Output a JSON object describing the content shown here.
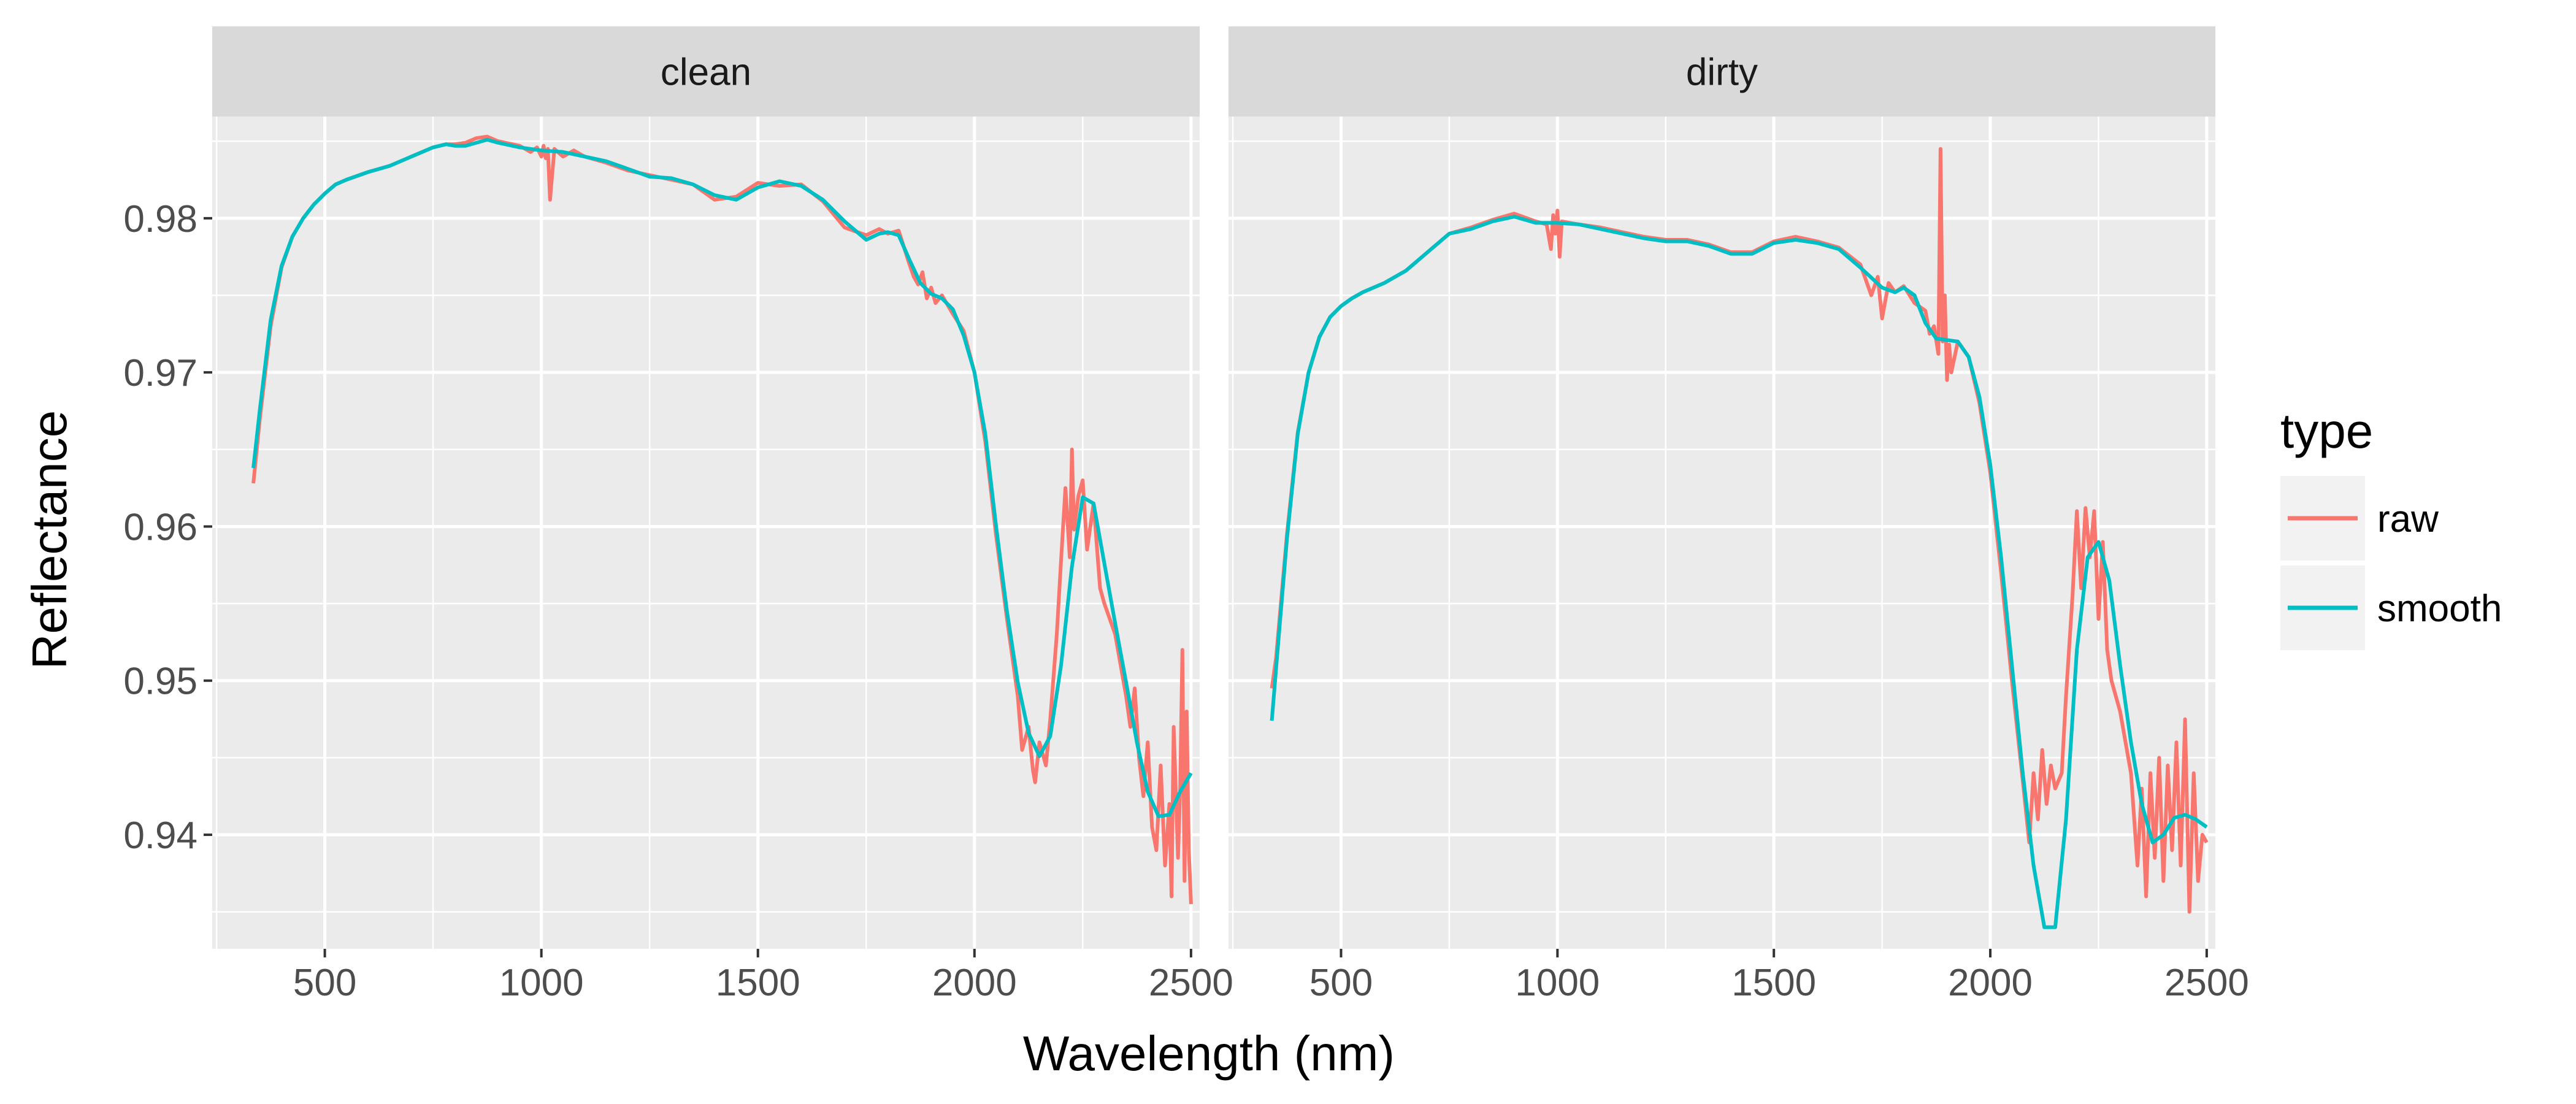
{
  "chart_data": {
    "type": "line",
    "xlabel": "Wavelength (nm)",
    "ylabel": "Reflectance",
    "xlim": [
      240,
      2520
    ],
    "ylim": [
      0.9326,
      0.9866
    ],
    "x_ticks": [
      500,
      1000,
      1500,
      2000,
      2500
    ],
    "x_tick_labels": [
      "500",
      "1000",
      "1500",
      "2000",
      "2500"
    ],
    "y_ticks": [
      0.94,
      0.95,
      0.96,
      0.97,
      0.98
    ],
    "y_tick_labels": [
      "0.94",
      "0.95",
      "0.96",
      "0.97",
      "0.98"
    ],
    "grid": true,
    "legend": {
      "title": "type",
      "position": "right",
      "entries": [
        {
          "label": "raw",
          "color": "#F8766D"
        },
        {
          "label": "smooth",
          "color": "#00BFC4"
        }
      ]
    },
    "colors": {
      "raw": "#F8766D",
      "smooth": "#00BFC4",
      "panel_bg": "#EBEBEB",
      "strip_bg": "#D9D9D9",
      "grid": "#FFFFFF"
    },
    "facets": [
      {
        "label": "clean",
        "series": [
          {
            "name": "smooth",
            "x": [
              335,
              350,
              375,
              400,
              425,
              450,
              475,
              500,
              525,
              550,
              600,
              650,
              700,
              750,
              780,
              800,
              825,
              850,
              875,
              900,
              950,
              1000,
              1050,
              1100,
              1150,
              1200,
              1250,
              1300,
              1350,
              1400,
              1450,
              1500,
              1550,
              1600,
              1650,
              1700,
              1750,
              1780,
              1800,
              1825,
              1850,
              1875,
              1900,
              1925,
              1950,
              1975,
              2000,
              2025,
              2050,
              2075,
              2100,
              2125,
              2150,
              2175,
              2200,
              2225,
              2250,
              2275,
              2300,
              2325,
              2350,
              2375,
              2400,
              2425,
              2450,
              2475,
              2500
            ],
            "y": [
              0.9638,
              0.9676,
              0.9734,
              0.9769,
              0.9788,
              0.98,
              0.9809,
              0.9816,
              0.9822,
              0.9825,
              0.983,
              0.9834,
              0.984,
              0.9846,
              0.9848,
              0.9847,
              0.9847,
              0.9849,
              0.9851,
              0.9849,
              0.9846,
              0.9844,
              0.9843,
              0.984,
              0.9837,
              0.9832,
              0.9827,
              0.9826,
              0.9822,
              0.9815,
              0.9812,
              0.982,
              0.9824,
              0.9821,
              0.9812,
              0.9798,
              0.9786,
              0.979,
              0.9791,
              0.9789,
              0.9773,
              0.9758,
              0.9751,
              0.9748,
              0.9741,
              0.9724,
              0.97,
              0.966,
              0.96,
              0.9545,
              0.9499,
              0.9466,
              0.9451,
              0.9464,
              0.951,
              0.9574,
              0.9619,
              0.9615,
              0.9576,
              0.9537,
              0.9499,
              0.946,
              0.9428,
              0.9412,
              0.9413,
              0.9428,
              0.944
            ]
          },
          {
            "name": "raw",
            "x": [
              335,
              350,
              375,
              400,
              425,
              450,
              475,
              500,
              525,
              550,
              600,
              650,
              700,
              750,
              780,
              800,
              825,
              850,
              875,
              900,
              950,
              975,
              990,
              1000,
              1005,
              1010,
              1015,
              1020,
              1030,
              1050,
              1075,
              1100,
              1150,
              1200,
              1250,
              1300,
              1350,
              1400,
              1450,
              1500,
              1550,
              1600,
              1650,
              1700,
              1750,
              1780,
              1800,
              1825,
              1850,
              1860,
              1870,
              1880,
              1890,
              1900,
              1910,
              1925,
              1950,
              1975,
              2000,
              2025,
              2050,
              2075,
              2090,
              2100,
              2110,
              2125,
              2135,
              2140,
              2150,
              2165,
              2175,
              2190,
              2200,
              2210,
              2220,
              2225,
              2230,
              2240,
              2250,
              2260,
              2275,
              2290,
              2300,
              2325,
              2350,
              2360,
              2370,
              2380,
              2390,
              2400,
              2410,
              2420,
              2430,
              2440,
              2450,
              2455,
              2460,
              2470,
              2475,
              2480,
              2485,
              2490,
              2495,
              2500
            ],
            "y": [
              0.9628,
              0.967,
              0.973,
              0.9768,
              0.9788,
              0.98,
              0.9809,
              0.9816,
              0.9822,
              0.9825,
              0.983,
              0.9834,
              0.984,
              0.9846,
              0.9848,
              0.9848,
              0.9849,
              0.9852,
              0.9853,
              0.985,
              0.9847,
              0.9843,
              0.9846,
              0.984,
              0.9847,
              0.9839,
              0.9845,
              0.9812,
              0.9845,
              0.984,
              0.9844,
              0.984,
              0.9836,
              0.9831,
              0.9828,
              0.9825,
              0.9822,
              0.9812,
              0.9814,
              0.9823,
              0.9821,
              0.9822,
              0.9811,
              0.9794,
              0.9789,
              0.9793,
              0.979,
              0.9792,
              0.977,
              0.9762,
              0.9757,
              0.9765,
              0.9748,
              0.9755,
              0.9745,
              0.975,
              0.9738,
              0.9727,
              0.97,
              0.9655,
              0.9594,
              0.954,
              0.951,
              0.949,
              0.9455,
              0.947,
              0.9442,
              0.9434,
              0.946,
              0.9445,
              0.9475,
              0.953,
              0.9578,
              0.9625,
              0.958,
              0.965,
              0.9598,
              0.962,
              0.963,
              0.9585,
              0.9615,
              0.956,
              0.955,
              0.953,
              0.949,
              0.947,
              0.9495,
              0.945,
              0.9425,
              0.946,
              0.9405,
              0.939,
              0.9445,
              0.938,
              0.942,
              0.936,
              0.947,
              0.9385,
              0.943,
              0.952,
              0.937,
              0.948,
              0.939,
              0.9355
            ]
          }
        ]
      },
      {
        "label": "dirty",
        "series": [
          {
            "name": "smooth",
            "x": [
              340,
              350,
              375,
              400,
              425,
              450,
              475,
              500,
              525,
              550,
              600,
              650,
              700,
              750,
              800,
              850,
              900,
              950,
              1000,
              1050,
              1100,
              1150,
              1200,
              1250,
              1300,
              1350,
              1400,
              1450,
              1500,
              1550,
              1600,
              1650,
              1700,
              1750,
              1780,
              1800,
              1825,
              1850,
              1875,
              1900,
              1925,
              1950,
              1975,
              2000,
              2025,
              2050,
              2075,
              2100,
              2125,
              2150,
              2175,
              2200,
              2225,
              2250,
              2275,
              2300,
              2325,
              2350,
              2375,
              2400,
              2425,
              2450,
              2475,
              2500
            ],
            "y": [
              0.9474,
              0.9508,
              0.9592,
              0.966,
              0.97,
              0.9723,
              0.9736,
              0.9743,
              0.9748,
              0.9752,
              0.9758,
              0.9766,
              0.9778,
              0.979,
              0.9793,
              0.9798,
              0.9801,
              0.9797,
              0.9797,
              0.9796,
              0.9793,
              0.979,
              0.9787,
              0.9785,
              0.9785,
              0.9782,
              0.9777,
              0.9777,
              0.9784,
              0.9786,
              0.9784,
              0.978,
              0.9768,
              0.9755,
              0.9752,
              0.9755,
              0.975,
              0.9732,
              0.9722,
              0.9721,
              0.972,
              0.971,
              0.9684,
              0.964,
              0.958,
              0.951,
              0.944,
              0.938,
              0.934,
              0.934,
              0.941,
              0.952,
              0.958,
              0.959,
              0.9565,
              0.951,
              0.946,
              0.942,
              0.9395,
              0.94,
              0.9411,
              0.9413,
              0.941,
              0.9405
            ]
          },
          {
            "name": "raw",
            "x": [
              340,
              350,
              375,
              400,
              425,
              450,
              475,
              500,
              525,
              550,
              600,
              650,
              700,
              750,
              800,
              850,
              900,
              950,
              975,
              985,
              990,
              995,
              1000,
              1005,
              1010,
              1050,
              1100,
              1150,
              1200,
              1250,
              1300,
              1350,
              1400,
              1450,
              1500,
              1550,
              1600,
              1650,
              1700,
              1725,
              1740,
              1750,
              1765,
              1780,
              1800,
              1825,
              1850,
              1860,
              1870,
              1880,
              1885,
              1890,
              1895,
              1900,
              1905,
              1910,
              1925,
              1950,
              1975,
              2000,
              2025,
              2050,
              2075,
              2090,
              2100,
              2110,
              2120,
              2130,
              2140,
              2150,
              2165,
              2175,
              2190,
              2200,
              2210,
              2220,
              2230,
              2240,
              2250,
              2260,
              2270,
              2280,
              2300,
              2325,
              2340,
              2350,
              2360,
              2370,
              2380,
              2390,
              2400,
              2410,
              2420,
              2430,
              2440,
              2450,
              2460,
              2470,
              2480,
              2490,
              2500
            ],
            "y": [
              0.9495,
              0.9515,
              0.9595,
              0.9661,
              0.97,
              0.9723,
              0.9736,
              0.9743,
              0.9748,
              0.9752,
              0.9758,
              0.9766,
              0.9778,
              0.979,
              0.9794,
              0.9799,
              0.9803,
              0.9798,
              0.9796,
              0.978,
              0.9802,
              0.979,
              0.9805,
              0.9775,
              0.9798,
              0.9796,
              0.9794,
              0.9791,
              0.9788,
              0.9786,
              0.9786,
              0.9783,
              0.9778,
              0.9778,
              0.9785,
              0.9788,
              0.9785,
              0.9781,
              0.977,
              0.975,
              0.9762,
              0.9735,
              0.9758,
              0.9752,
              0.9756,
              0.9745,
              0.974,
              0.9725,
              0.973,
              0.9712,
              0.9845,
              0.972,
              0.975,
              0.9695,
              0.9718,
              0.97,
              0.972,
              0.971,
              0.968,
              0.9635,
              0.957,
              0.95,
              0.9435,
              0.9395,
              0.944,
              0.941,
              0.9455,
              0.942,
              0.9445,
              0.943,
              0.944,
              0.949,
              0.9555,
              0.961,
              0.956,
              0.9612,
              0.958,
              0.961,
              0.954,
              0.959,
              0.952,
              0.95,
              0.948,
              0.944,
              0.938,
              0.943,
              0.936,
              0.944,
              0.9385,
              0.945,
              0.937,
              0.9445,
              0.939,
              0.946,
              0.938,
              0.9475,
              0.935,
              0.944,
              0.937,
              0.94,
              0.9395
            ]
          }
        ]
      }
    ]
  }
}
